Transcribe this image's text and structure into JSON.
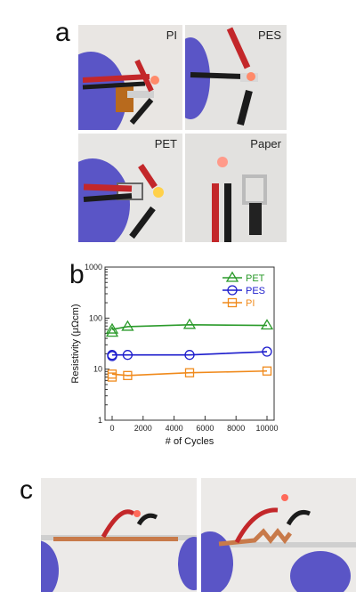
{
  "panels": {
    "a": {
      "label": "a",
      "photos": [
        "PI",
        "PES",
        "PET",
        "Paper"
      ]
    },
    "b": {
      "label": "b"
    },
    "c": {
      "label": "c"
    }
  },
  "chart_data": {
    "type": "line",
    "xlabel": "# of Cycles",
    "ylabel": "Resistivity (μΩcm)",
    "yscale": "log",
    "xlim": [
      0,
      10000
    ],
    "ylim": [
      1,
      1000
    ],
    "xticks": [
      0,
      2000,
      4000,
      6000,
      8000,
      10000
    ],
    "yticks": [
      1,
      10,
      100,
      1000
    ],
    "legend_position": "top-right",
    "grid": false,
    "series": [
      {
        "name": "PET",
        "color": "#2a9a2a",
        "marker": "triangle",
        "x": [
          0,
          1000,
          5000,
          10000
        ],
        "y": [
          60,
          68,
          74,
          72
        ],
        "y_initial": 52
      },
      {
        "name": "PES",
        "color": "#1c1ccc",
        "marker": "circle",
        "x": [
          0,
          1000,
          5000,
          10000
        ],
        "y": [
          19,
          19,
          19,
          22
        ],
        "y_initial": 18
      },
      {
        "name": "PI",
        "color": "#f08a1c",
        "marker": "square",
        "x": [
          0,
          1000,
          5000,
          10000
        ],
        "y": [
          8,
          7.5,
          8.5,
          9.2
        ],
        "y_initial": 7
      }
    ]
  }
}
